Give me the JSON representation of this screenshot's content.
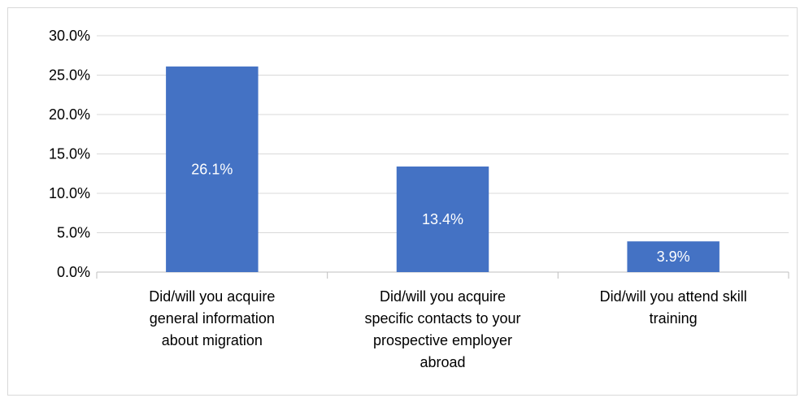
{
  "chart_data": {
    "type": "bar",
    "categories": [
      [
        "Did/will you acquire",
        "general information",
        "about migration"
      ],
      [
        "Did/will you acquire",
        "specific contacts to your",
        "prospective employer",
        "abroad"
      ],
      [
        "Did/will you attend skill",
        "training"
      ]
    ],
    "values": [
      26.1,
      13.4,
      3.9
    ],
    "data_labels": [
      "26.1%",
      "13.4%",
      "3.9%"
    ],
    "yticks": [
      "0.0%",
      "5.0%",
      "10.0%",
      "15.0%",
      "20.0%",
      "25.0%",
      "30.0%"
    ],
    "ylim": [
      0,
      30
    ],
    "grid": true,
    "legend": "none",
    "bar_color": "#4472C4",
    "grid_color": "#d9d9d9"
  }
}
